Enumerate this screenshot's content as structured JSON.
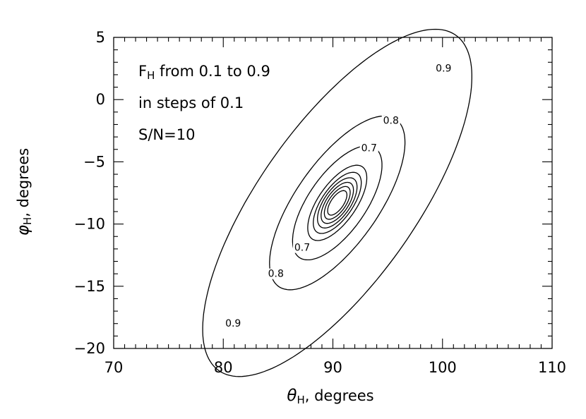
{
  "chart_data": {
    "type": "contour",
    "xlabel": {
      "symbol": "θ",
      "sub": "H",
      "rest": ", degrees"
    },
    "ylabel": {
      "symbol": "φ",
      "sub": "H",
      "rest": ", degrees"
    },
    "xlim": [
      70,
      110
    ],
    "ylim": [
      -20,
      5
    ],
    "xticks": [
      70,
      80,
      90,
      100,
      110
    ],
    "yticks": [
      -20,
      -15,
      -10,
      -5,
      0,
      5
    ],
    "annotations": [
      {
        "main": "F",
        "sub": "H",
        "rest": " from 0.1 to 0.9"
      },
      {
        "main": "in steps of 0.1",
        "sub": "",
        "rest": ""
      },
      {
        "main": "S/N=10",
        "sub": "",
        "rest": ""
      }
    ],
    "center": [
      90.4,
      -8.3
    ],
    "tilt_deg": 50,
    "contours": [
      {
        "level": 0.1,
        "semi_major": 1.2,
        "semi_minor": 0.55,
        "label": ""
      },
      {
        "level": 0.2,
        "semi_major": 1.6,
        "semi_minor": 0.75,
        "label": ""
      },
      {
        "level": 0.3,
        "semi_major": 2.0,
        "semi_minor": 0.95,
        "label": ""
      },
      {
        "level": 0.4,
        "semi_major": 2.45,
        "semi_minor": 1.15,
        "label": ""
      },
      {
        "level": 0.5,
        "semi_major": 3.0,
        "semi_minor": 1.35,
        "label": ""
      },
      {
        "level": 0.6,
        "semi_major": 3.7,
        "semi_minor": 1.65,
        "label": ""
      },
      {
        "level": 0.7,
        "semi_major": 5.6,
        "semi_minor": 2.5,
        "label": "0.7"
      },
      {
        "level": 0.8,
        "semi_major": 8.6,
        "semi_minor": 3.6,
        "label": "0.8"
      },
      {
        "level": 0.9,
        "semi_major": 17.3,
        "semi_minor": 6.8,
        "label": "0.9"
      }
    ],
    "contour_labels": [
      {
        "text": "0.9",
        "x": 100.1,
        "y": 2.3
      },
      {
        "text": "0.9",
        "x": 80.9,
        "y": -18.2
      },
      {
        "text": "0.8",
        "x": 95.3,
        "y": -1.9
      },
      {
        "text": "0.8",
        "x": 84.8,
        "y": -14.2
      },
      {
        "text": "0.7",
        "x": 93.3,
        "y": -4.1
      },
      {
        "text": "0.7",
        "x": 87.2,
        "y": -12.1
      }
    ]
  }
}
